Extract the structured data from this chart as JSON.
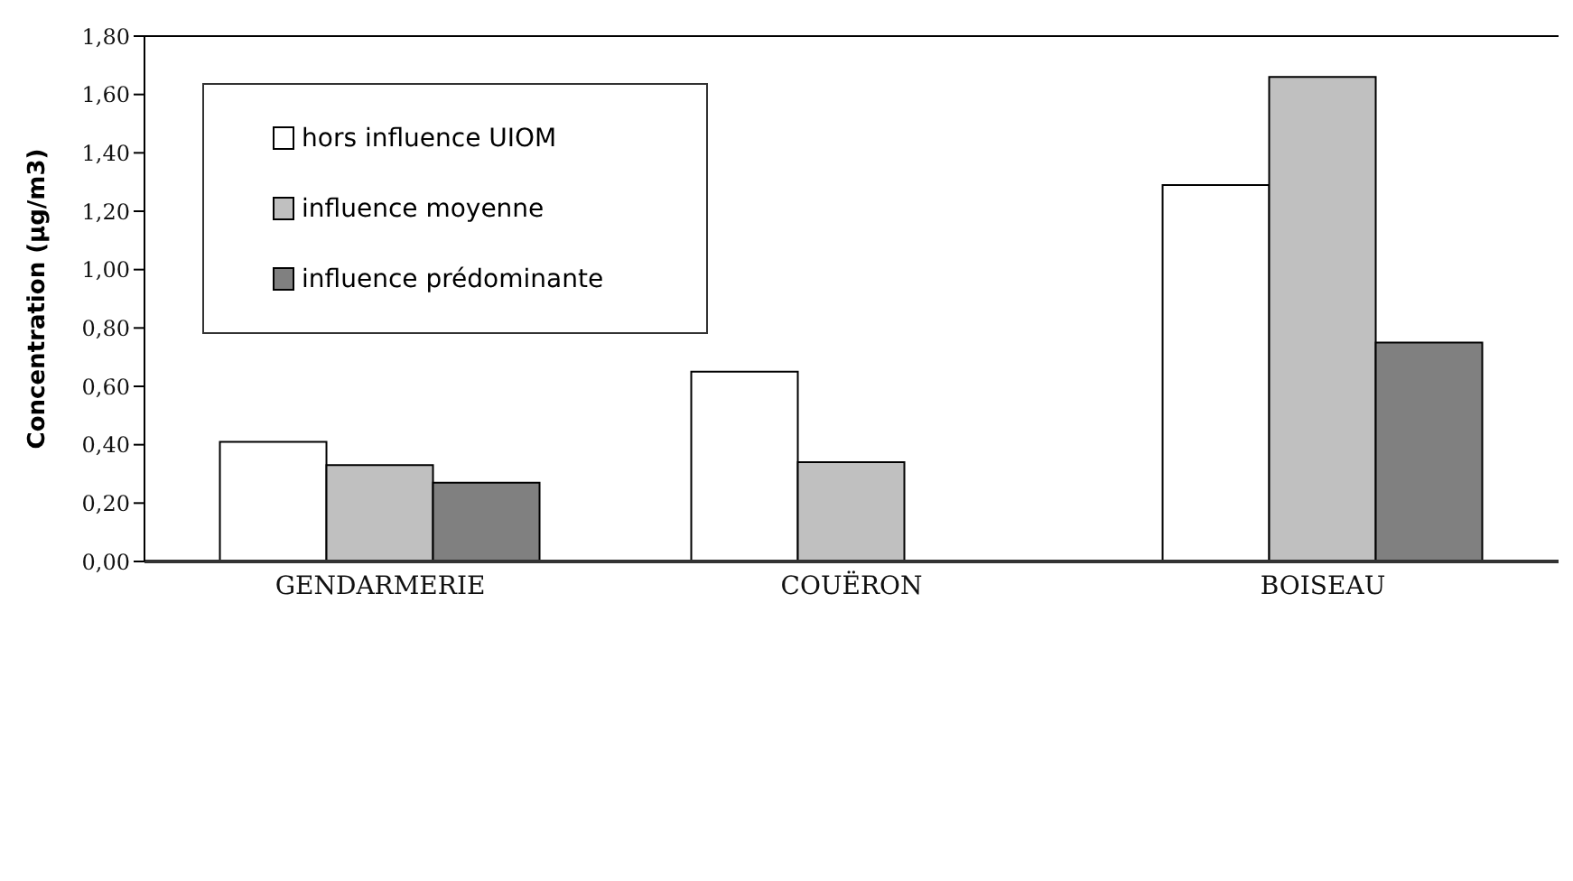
{
  "chart_data": {
    "type": "bar",
    "ylabel": "Concentration (µg/m3)",
    "categories": [
      "GENDARMERIE",
      "COUËRON",
      "BOISEAU"
    ],
    "series": [
      {
        "name": "hors influence UIOM",
        "color": "#ffffff",
        "values": [
          0.41,
          0.65,
          1.29
        ]
      },
      {
        "name": "influence moyenne",
        "color": "#c0c0c0",
        "values": [
          0.33,
          0.34,
          1.66
        ]
      },
      {
        "name": "influence prédominante",
        "color": "#808080",
        "values": [
          0.27,
          null,
          0.75
        ]
      }
    ],
    "ylim": [
      0,
      1.8
    ],
    "yticks": [
      {
        "value": 0,
        "label": "0,00"
      },
      {
        "value": 0.2,
        "label": "0,20"
      },
      {
        "value": 0.4,
        "label": "0,40"
      },
      {
        "value": 0.6,
        "label": "0,60"
      },
      {
        "value": 0.8,
        "label": "0,80"
      },
      {
        "value": 1,
        "label": "1,00"
      },
      {
        "value": 1.2,
        "label": "1,20"
      },
      {
        "value": 1.4,
        "label": "1,40"
      },
      {
        "value": 1.6,
        "label": "1,60"
      },
      {
        "value": 1.8,
        "label": "1,80"
      }
    ],
    "grid": false,
    "legend": "top left"
  }
}
